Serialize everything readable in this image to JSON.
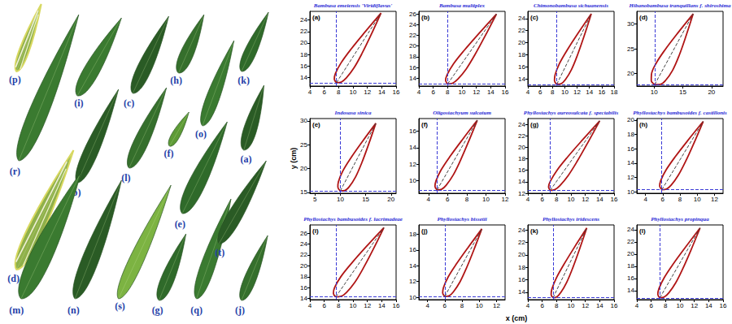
{
  "photo": {
    "leaf_labels": [
      "(p)",
      "(i)",
      "(c)",
      "(h)",
      "(k)",
      "(r)",
      "(b)",
      "(l)",
      "(f)",
      "(o)",
      "(a)",
      "(d)",
      "(e)",
      "(m)",
      "(n)",
      "(s)",
      "(g)",
      "(q)",
      "(t)",
      "(j)"
    ]
  },
  "axis_labels": {
    "x": "x (cm)",
    "y": "y (cm)"
  },
  "chart_data": [
    {
      "type": "line",
      "title": "Bambusa emeiensis 'Viridiflavus'",
      "panel": "(a)",
      "color": "#b01515",
      "grid": false,
      "xlim": [
        4,
        16
      ],
      "xticks": [
        4,
        6,
        8,
        10,
        12,
        14,
        16
      ],
      "ylim": [
        12.5,
        25.5
      ],
      "yticks": [
        14,
        16,
        18,
        20,
        22,
        24
      ],
      "base": [
        7.7,
        13.1
      ],
      "apex": [
        13.9,
        25.2
      ],
      "outline": [
        [
          7.7,
          13.1
        ],
        [
          8.38,
          13.21
        ],
        [
          9.08,
          13.92
        ],
        [
          10.14,
          15.67
        ],
        [
          11.25,
          18.16
        ],
        [
          12.49,
          21.34
        ],
        [
          13.9,
          25.2
        ],
        [
          11.6,
          21.8
        ],
        [
          9.73,
          18.93
        ],
        [
          8.36,
          16.58
        ],
        [
          7.56,
          14.7
        ],
        [
          7.4,
          13.71
        ],
        [
          7.7,
          13.1
        ]
      ]
    },
    {
      "type": "line",
      "title": "Bambusa multiplex",
      "panel": "(b)",
      "color": "#b01515",
      "grid": false,
      "xlim": [
        4,
        16
      ],
      "xticks": [
        4,
        6,
        8,
        10,
        12,
        14,
        16
      ],
      "ylim": [
        12.5,
        26.5
      ],
      "yticks": [
        14,
        16,
        18,
        20,
        22,
        24,
        26
      ],
      "base": [
        8.0,
        12.9
      ],
      "apex": [
        14.8,
        26.0
      ],
      "outline": [
        [
          8.0,
          12.9
        ],
        [
          8.69,
          13.04
        ],
        [
          9.43,
          13.82
        ],
        [
          10.59,
          15.71
        ],
        [
          11.81,
          18.4
        ],
        [
          13.2,
          21.84
        ],
        [
          14.8,
          26.0
        ],
        [
          12.32,
          22.3
        ],
        [
          10.31,
          19.19
        ],
        [
          8.81,
          16.64
        ],
        [
          7.93,
          14.6
        ],
        [
          7.72,
          13.55
        ],
        [
          8.0,
          12.9
        ]
      ]
    },
    {
      "type": "line",
      "title": "Chimonobambusa sichuanensis",
      "panel": "(c)",
      "color": "#b01515",
      "grid": false,
      "xlim": [
        4,
        18
      ],
      "xticks": [
        4,
        6,
        8,
        10,
        12,
        14,
        16,
        18
      ],
      "ylim": [
        12.8,
        25.2
      ],
      "yticks": [
        14,
        16,
        18,
        20,
        22,
        24
      ],
      "base": [
        8.7,
        13.1
      ],
      "apex": [
        14.3,
        24.8
      ],
      "outline": [
        [
          8.7,
          13.1
        ],
        [
          9.41,
          13.19
        ],
        [
          10.1,
          13.87
        ],
        [
          11.09,
          15.55
        ],
        [
          12.06,
          17.96
        ],
        [
          13.12,
          21.05
        ],
        [
          14.3,
          24.8
        ],
        [
          12.12,
          21.53
        ],
        [
          10.38,
          18.77
        ],
        [
          9.11,
          16.5
        ],
        [
          8.42,
          14.67
        ],
        [
          8.32,
          13.71
        ],
        [
          8.7,
          13.1
        ]
      ]
    },
    {
      "type": "line",
      "title": "Hibanobambusa tranquillans f. shiroshima",
      "panel": "(d)",
      "color": "#b01515",
      "grid": false,
      "xlim": [
        7,
        22
      ],
      "xticks": [
        10,
        15,
        20
      ],
      "ylim": [
        17.5,
        32.5
      ],
      "yticks": [
        20,
        25,
        30
      ],
      "base": [
        10.1,
        17.8
      ],
      "apex": [
        16.8,
        32.0
      ],
      "outline": [
        [
          10.1,
          17.8
        ],
        [
          11.1,
          17.85
        ],
        [
          12.0,
          18.64
        ],
        [
          13.22,
          20.67
        ],
        [
          14.35,
          23.61
        ],
        [
          15.51,
          27.4
        ],
        [
          16.8,
          32.0
        ],
        [
          14.07,
          28.08
        ],
        [
          11.89,
          24.77
        ],
        [
          10.33,
          22.03
        ],
        [
          9.54,
          19.8
        ],
        [
          9.51,
          18.6
        ],
        [
          10.1,
          17.8
        ]
      ]
    },
    {
      "type": "line",
      "title": "Indosasa sinica",
      "panel": "(e)",
      "color": "#b01515",
      "grid": false,
      "xlim": [
        4,
        21
      ],
      "xticks": [
        5,
        10,
        15,
        20
      ],
      "ylim": [
        14.8,
        30.5
      ],
      "yticks": [
        15,
        20,
        25,
        30
      ],
      "base": [
        10.0,
        15.3
      ],
      "apex": [
        17.0,
        29.5
      ],
      "outline": [
        [
          10.0,
          15.3
        ],
        [
          10.9,
          15.39
        ],
        [
          11.77,
          16.19
        ],
        [
          13.01,
          18.23
        ],
        [
          14.22,
          21.16
        ],
        [
          15.53,
          24.93
        ],
        [
          17.0,
          29.5
        ],
        [
          14.27,
          25.55
        ],
        [
          12.08,
          22.22
        ],
        [
          10.49,
          19.47
        ],
        [
          9.63,
          17.25
        ],
        [
          9.52,
          16.07
        ],
        [
          10.0,
          15.3
        ]
      ]
    },
    {
      "type": "line",
      "title": "Oligostachyum sulcatum",
      "panel": "(f)",
      "color": "#b01515",
      "grid": false,
      "xlim": [
        3,
        12
      ],
      "xticks": [
        4,
        6,
        8,
        10,
        12
      ],
      "ylim": [
        8.5,
        17.5
      ],
      "yticks": [
        10,
        12,
        14,
        16
      ],
      "base": [
        4.9,
        8.9
      ],
      "apex": [
        9.1,
        17.3
      ],
      "outline": [
        [
          4.9,
          8.9
        ],
        [
          5.37,
          8.98
        ],
        [
          5.85,
          9.47
        ],
        [
          6.58,
          10.69
        ],
        [
          7.32,
          12.41
        ],
        [
          8.15,
          14.62
        ],
        [
          9.1,
          17.3
        ],
        [
          7.53,
          14.94
        ],
        [
          6.26,
          12.95
        ],
        [
          5.32,
          11.31
        ],
        [
          4.79,
          10.01
        ],
        [
          4.68,
          9.32
        ],
        [
          4.9,
          8.9
        ]
      ]
    },
    {
      "type": "line",
      "title": "Phyllostachys aureosulcata f. spectabilis",
      "panel": "(g)",
      "color": "#b01515",
      "grid": false,
      "xlim": [
        4,
        16
      ],
      "xticks": [
        4,
        6,
        8,
        10,
        12,
        14,
        16
      ],
      "ylim": [
        12,
        25
      ],
      "yticks": [
        12,
        14,
        16,
        18,
        20,
        22,
        24
      ],
      "base": [
        7.1,
        12.5
      ],
      "apex": [
        14.0,
        24.6
      ],
      "outline": [
        [
          7.1,
          12.5
        ],
        [
          7.74,
          12.62
        ],
        [
          8.46,
          13.33
        ],
        [
          9.61,
          15.08
        ],
        [
          10.87,
          17.57
        ],
        [
          12.32,
          20.75
        ],
        [
          14.0,
          24.6
        ],
        [
          11.54,
          21.19
        ],
        [
          9.54,
          18.32
        ],
        [
          8.04,
          15.97
        ],
        [
          7.13,
          14.09
        ],
        [
          6.88,
          13.11
        ],
        [
          7.1,
          12.5
        ]
      ]
    },
    {
      "type": "line",
      "title": "Phyllostachys bambusoides f. castillonis",
      "panel": "(h)",
      "color": "#b01515",
      "grid": false,
      "xlim": [
        3,
        13
      ],
      "xticks": [
        4,
        6,
        8,
        10,
        12
      ],
      "ylim": [
        9.8,
        20.2
      ],
      "yticks": [
        10,
        12,
        14,
        16,
        18,
        20
      ],
      "base": [
        5.9,
        10.3
      ],
      "apex": [
        10.7,
        19.8
      ],
      "outline": [
        [
          5.9,
          10.3
        ],
        [
          6.44,
          10.39
        ],
        [
          6.99,
          10.94
        ],
        [
          7.81,
          12.31
        ],
        [
          8.67,
          14.27
        ],
        [
          9.62,
          16.77
        ],
        [
          10.7,
          19.8
        ],
        [
          8.9,
          17.13
        ],
        [
          7.45,
          14.88
        ],
        [
          6.39,
          13.04
        ],
        [
          5.77,
          11.56
        ],
        [
          5.65,
          10.78
        ],
        [
          5.9,
          10.3
        ]
      ]
    },
    {
      "type": "line",
      "title": "Phyllostachys bambusoides f. lacrimadeae",
      "panel": "(i)",
      "color": "#b01515",
      "grid": false,
      "xlim": [
        4,
        16
      ],
      "xticks": [
        4,
        6,
        8,
        10,
        12,
        14,
        16
      ],
      "ylim": [
        13.8,
        27.5
      ],
      "yticks": [
        14,
        16,
        18,
        20,
        22,
        24,
        26
      ],
      "base": [
        7.6,
        14.3
      ],
      "apex": [
        14.3,
        27.0
      ],
      "outline": [
        [
          7.6,
          14.3
        ],
        [
          8.34,
          14.4
        ],
        [
          9.1,
          15.13
        ],
        [
          10.25,
          16.96
        ],
        [
          11.44,
          19.58
        ],
        [
          12.78,
          22.93
        ],
        [
          14.3,
          27.0
        ],
        [
          11.8,
          23.45
        ],
        [
          9.79,
          20.45
        ],
        [
          8.3,
          17.99
        ],
        [
          7.44,
          16.01
        ],
        [
          7.27,
          14.96
        ],
        [
          7.6,
          14.3
        ]
      ]
    },
    {
      "type": "line",
      "title": "Phyllostachys bissetii",
      "panel": "(j)",
      "color": "#b01515",
      "grid": false,
      "xlim": [
        3,
        13
      ],
      "xticks": [
        4,
        6,
        8,
        10,
        12
      ],
      "ylim": [
        9.7,
        19.2
      ],
      "yticks": [
        10,
        12,
        14,
        16,
        18
      ],
      "base": [
        6.0,
        10.1
      ],
      "apex": [
        10.3,
        18.7
      ],
      "outline": [
        [
          6.0,
          10.1
        ],
        [
          6.5,
          10.17
        ],
        [
          7.0,
          10.68
        ],
        [
          7.75,
          11.92
        ],
        [
          8.51,
          13.69
        ],
        [
          9.35,
          15.95
        ],
        [
          10.3,
          18.7
        ],
        [
          8.68,
          16.29
        ],
        [
          7.37,
          14.26
        ],
        [
          6.4,
          12.59
        ],
        [
          5.86,
          11.25
        ],
        [
          5.76,
          10.54
        ],
        [
          6.0,
          10.1
        ]
      ]
    },
    {
      "type": "line",
      "title": "Phyllostachys iridescens",
      "panel": "(k)",
      "color": "#b01515",
      "grid": false,
      "xlim": [
        4,
        16
      ],
      "xticks": [
        4,
        6,
        8,
        10,
        12,
        14,
        16
      ],
      "ylim": [
        12.8,
        24.8
      ],
      "yticks": [
        14,
        16,
        18,
        20,
        22,
        24
      ],
      "base": [
        7.5,
        13.1
      ],
      "apex": [
        12.2,
        24.3
      ],
      "outline": [
        [
          7.5,
          13.1
        ],
        [
          8.05,
          13.27
        ],
        [
          8.6,
          13.96
        ],
        [
          9.41,
          15.59
        ],
        [
          10.24,
          17.88
        ],
        [
          11.16,
          20.79
        ],
        [
          12.2,
          24.3
        ],
        [
          10.42,
          21.1
        ],
        [
          8.99,
          18.4
        ],
        [
          7.94,
          16.21
        ],
        [
          7.34,
          14.48
        ],
        [
          7.24,
          13.61
        ],
        [
          7.5,
          13.1
        ]
      ]
    },
    {
      "type": "line",
      "title": "Phyllostachys propinqua",
      "panel": "(l)",
      "color": "#b01515",
      "grid": false,
      "xlim": [
        4,
        16
      ],
      "xticks": [
        4,
        6,
        8,
        10,
        12,
        14,
        16
      ],
      "ylim": [
        12.5,
        24.8
      ],
      "yticks": [
        14,
        16,
        18,
        20,
        22,
        24
      ],
      "base": [
        7.2,
        12.8
      ],
      "apex": [
        12.8,
        24.3
      ],
      "outline": [
        [
          7.2,
          12.8
        ],
        [
          7.81,
          12.93
        ],
        [
          8.45,
          13.62
        ],
        [
          9.41,
          15.28
        ],
        [
          10.41,
          17.64
        ],
        [
          11.53,
          20.65
        ],
        [
          12.8,
          24.3
        ],
        [
          10.72,
          21.05
        ],
        [
          9.03,
          18.31
        ],
        [
          7.79,
          16.07
        ],
        [
          7.07,
          14.29
        ],
        [
          6.92,
          13.36
        ],
        [
          7.2,
          12.8
        ]
      ]
    }
  ]
}
